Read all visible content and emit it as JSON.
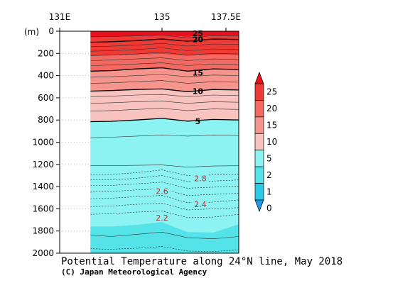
{
  "chart_data": {
    "type": "heatmap",
    "title": "Potential Temperature along 24°N line, May 2018",
    "subtitle": "(C) Japan Meteorological Agency",
    "ylabel": "(m)",
    "x_ticks": [
      "131E",
      "135",
      "137.5E"
    ],
    "x_tick_values": [
      131,
      135,
      137.5
    ],
    "xlim": [
      131,
      138
    ],
    "y_ticks": [
      "0",
      "200",
      "400",
      "600",
      "800",
      "1000",
      "1200",
      "1400",
      "1600",
      "1800",
      "2000"
    ],
    "y_tick_values": [
      0,
      200,
      400,
      600,
      800,
      1000,
      1200,
      1400,
      1600,
      1800,
      2000
    ],
    "ylim": [
      0,
      2000
    ],
    "y_inverted": true,
    "data_x_start": 132.2,
    "colorbar": {
      "labels": [
        "25",
        "20",
        "15",
        "10",
        "5",
        "2",
        "1",
        "0"
      ],
      "levels": [
        25,
        20,
        15,
        10,
        5,
        2,
        1,
        0
      ],
      "colors": [
        "#e8101a",
        "#ee3a34",
        "#f26a62",
        "#f5958d",
        "#f8c3be",
        "#8cf2f2",
        "#55e3ea",
        "#2cc9e6",
        "#1a9ce8"
      ]
    },
    "contour_labels": [
      {
        "text": "25",
        "lon": 136.4,
        "depth": 20,
        "style": "dark"
      },
      {
        "text": "20",
        "lon": 136.4,
        "depth": 75,
        "style": "dark"
      },
      {
        "text": "15",
        "lon": 136.4,
        "depth": 375,
        "style": "dark"
      },
      {
        "text": "10",
        "lon": 136.4,
        "depth": 540,
        "style": "dark"
      },
      {
        "text": "5",
        "lon": 136.4,
        "depth": 810,
        "style": "dark"
      },
      {
        "text": "2.8",
        "lon": 136.5,
        "depth": 1325,
        "style": "red"
      },
      {
        "text": "2.6",
        "lon": 135.0,
        "depth": 1440,
        "style": "red"
      },
      {
        "text": "2.4",
        "lon": 136.5,
        "depth": 1560,
        "style": "red"
      },
      {
        "text": "2.2",
        "lon": 135.0,
        "depth": 1680,
        "style": "red"
      }
    ]
  }
}
